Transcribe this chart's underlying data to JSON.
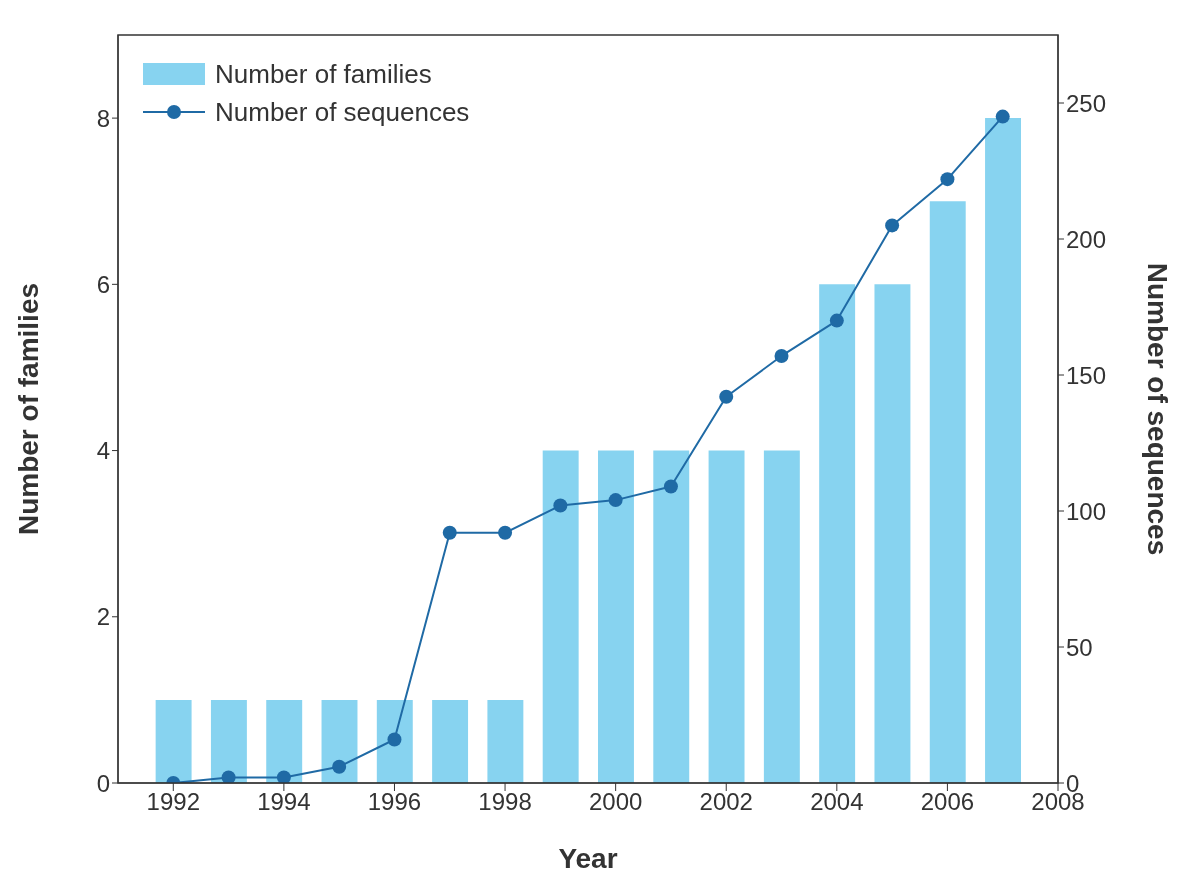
{
  "chart_data": {
    "type": "bar",
    "xlabel": "Year",
    "ylabel": "Number of families",
    "y2label": "Number of sequences",
    "x": [
      1992,
      1993,
      1994,
      1995,
      1996,
      1997,
      1998,
      1999,
      2000,
      2001,
      2002,
      2003,
      2004,
      2005,
      2006,
      2007
    ],
    "series": [
      {
        "name": "Number of families",
        "color": "#87d3f0",
        "values": [
          1,
          1,
          1,
          1,
          1,
          1,
          1,
          4,
          4,
          4,
          4,
          4,
          6,
          6,
          7,
          8
        ]
      },
      {
        "name": "Number of sequences",
        "type": "line",
        "axis": "y2",
        "color": "#1f6aa5",
        "values": [
          0,
          2,
          2,
          6,
          16,
          92,
          92,
          102,
          104,
          109,
          142,
          157,
          170,
          205,
          222,
          245
        ]
      }
    ],
    "xlim": [
      1991,
      2008
    ],
    "xticks": [
      1992,
      1994,
      1996,
      1998,
      2000,
      2002,
      2004,
      2006,
      2008
    ],
    "ylim": [
      0,
      9
    ],
    "yticks": [
      0,
      2,
      4,
      6,
      8
    ],
    "y2lim": [
      0,
      275
    ],
    "y2ticks": [
      0,
      50,
      100,
      150,
      200,
      250
    ],
    "grid": false,
    "legend": "top left",
    "marker": "circle",
    "line_style": "solid"
  }
}
